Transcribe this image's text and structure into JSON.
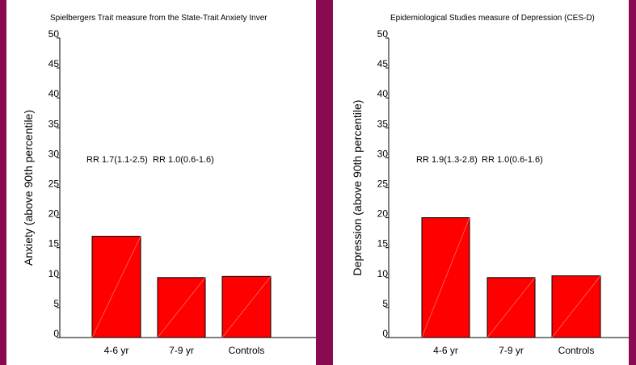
{
  "colors": {
    "background": "#8a0a52",
    "panel": "#ffffff",
    "bar_fill": "#ff0000",
    "bar_stroke": "#000000"
  },
  "chart_data": [
    {
      "type": "bar",
      "title": "Spielbergers Trait measure from the State-Trait Anxiety Inver",
      "xlabel": "",
      "ylabel": "Anxiety (above 90th percentile)",
      "categories": [
        "4-6 yr",
        "7-9 yr",
        "Controls"
      ],
      "values": [
        16.9,
        10.0,
        10.2
      ],
      "ylim": [
        0,
        50
      ],
      "yticks": [
        0,
        5,
        10,
        15,
        20,
        25,
        30,
        35,
        40,
        45,
        50
      ],
      "annotations": [
        "RR 1.7(1.1-2.5)",
        "RR 1.0(0.6-1.6)"
      ],
      "grid": false
    },
    {
      "type": "bar",
      "title": "Epidemiological Studies measure of Depression (CES-D)",
      "xlabel": "",
      "ylabel": "Depression (above 90th percentile)",
      "categories": [
        "4-6 yr",
        "7-9 yr",
        "Controls"
      ],
      "values": [
        20.0,
        10.0,
        10.3
      ],
      "ylim": [
        0,
        50
      ],
      "yticks": [
        0,
        5,
        10,
        15,
        20,
        25,
        30,
        35,
        40,
        45,
        50
      ],
      "annotations": [
        "RR 1.9(1.3-2.8)",
        "RR 1.0(0.6-1.6)"
      ],
      "grid": false
    }
  ]
}
